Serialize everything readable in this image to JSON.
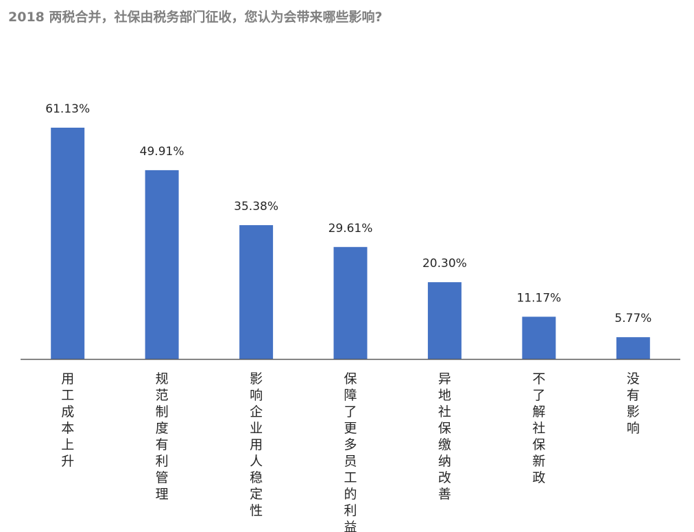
{
  "title": "2018 两税合并，社保由税务部门征收，您认为会带来哪些影响?",
  "colors": {
    "bar": "#4472c4",
    "axis": "#595959",
    "title": "#7f7f7f",
    "label": "#262626"
  },
  "chart_data": {
    "type": "bar",
    "title": "2018 两税合并，社保由税务部门征收，您认为会带来哪些影响?",
    "categories": [
      "用工成本上升",
      "规范制度有利管理",
      "影响企业用人稳定性",
      "保障了更多员工的利益",
      "异地社保缴纳改善",
      "不了解社保新政",
      "没有影响"
    ],
    "values": [
      61.13,
      49.91,
      35.38,
      29.61,
      20.3,
      11.17,
      5.77
    ],
    "value_labels": [
      "61.13%",
      "49.91%",
      "35.38%",
      "29.61%",
      "20.30%",
      "11.17%",
      "5.77%"
    ],
    "unit": "%",
    "xlabel": "",
    "ylabel": "",
    "ylim": [
      0,
      61.13
    ],
    "grid": false,
    "legend": "none",
    "category_label_orientation": "vertical"
  }
}
